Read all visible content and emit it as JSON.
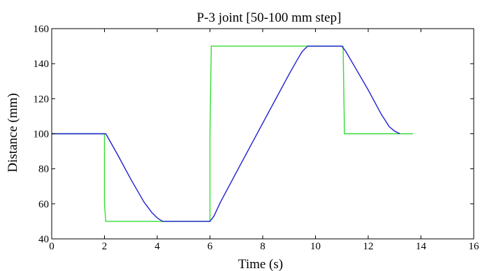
{
  "chart_data": {
    "type": "line",
    "title": "P-3 joint [50-100 mm step]",
    "xlabel": "Time (s)",
    "ylabel": "Distance (mm)",
    "xlim": [
      0,
      16
    ],
    "ylim": [
      40,
      160
    ],
    "xticks": [
      0,
      2,
      4,
      6,
      8,
      10,
      12,
      14,
      16
    ],
    "yticks": [
      40,
      60,
      80,
      100,
      120,
      140,
      160
    ],
    "grid": false,
    "legend": "none",
    "series": [
      {
        "color": "#33dd33",
        "x": [
          0,
          2.0,
          2.0,
          2.05,
          6.0,
          6.0,
          6.05,
          11.0,
          11.05,
          11.1,
          13.7
        ],
        "y": [
          100,
          100,
          60,
          50,
          50,
          100,
          150,
          150,
          150,
          100,
          100
        ]
      },
      {
        "color": "#1f1fd6",
        "x": [
          0,
          2.05,
          2.2,
          2.5,
          3.0,
          3.5,
          3.8,
          4.0,
          4.2,
          6.0,
          6.15,
          6.4,
          7.0,
          8.0,
          9.0,
          9.3,
          9.5,
          9.7,
          11.0,
          11.15,
          11.5,
          12.0,
          12.5,
          12.8,
          13.0,
          13.2
        ],
        "y": [
          100,
          100,
          96,
          88,
          74,
          61,
          55,
          52,
          50,
          50,
          53,
          61,
          78,
          106,
          134,
          142,
          147,
          150,
          150,
          147,
          138,
          125,
          111,
          104,
          101.5,
          100
        ]
      }
    ]
  }
}
